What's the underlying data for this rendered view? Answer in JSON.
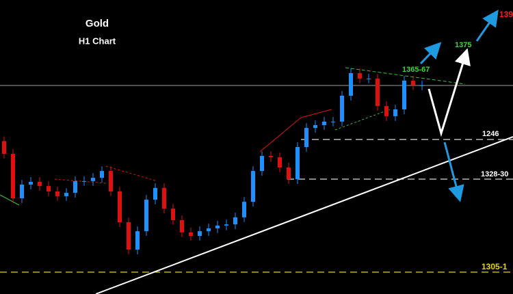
{
  "chart_data": {
    "type": "candlestick",
    "title": "Gold",
    "subtitle": "H1 Chart",
    "ylim": [
      1280,
      1405
    ],
    "up_color": "#1e90ff",
    "down_color": "#e01010",
    "open": [
      1345,
      1339.6,
      1320.7,
      1326.5,
      1327.7,
      1325.9,
      1323.6,
      1321.6,
      1323.0,
      1328.0,
      1328.0,
      1329.4,
      1332.3,
      1323.6,
      1310.5,
      1298.9,
      1306.7,
      1320.1,
      1325.1,
      1316.3,
      1311.4,
      1306.2,
      1304.7,
      1306.7,
      1307.9,
      1309.1,
      1309.6,
      1312.6,
      1319.2,
      1332.3,
      1338.7,
      1338.1,
      1333.8,
      1328.8,
      1342.5,
      1350.6,
      1351.8,
      1353.3,
      1353.3,
      1364.3,
      1373.9,
      1371.6,
      1371.6,
      1359.9,
      1355.6,
      1358.5,
      1370.7,
      1368.7
    ],
    "high": [
      1347,
      1341.6,
      1328.5,
      1329.7,
      1329.7,
      1327.9,
      1325.6,
      1325.0,
      1330.0,
      1330.0,
      1331.4,
      1334.3,
      1334.3,
      1325.6,
      1312.5,
      1308.7,
      1322.1,
      1327.1,
      1327.1,
      1318.3,
      1313.4,
      1308.2,
      1308.7,
      1309.9,
      1311.1,
      1311.6,
      1314.6,
      1321.2,
      1334.3,
      1340.7,
      1340.7,
      1340.1,
      1335.8,
      1344.5,
      1352.6,
      1353.8,
      1355.3,
      1355.3,
      1366.3,
      1375.9,
      1375.9,
      1373.6,
      1373.6,
      1361.9,
      1360.5,
      1372.7,
      1372.7,
      1370.7
    ],
    "low": [
      1337.6,
      1318.7,
      1318.7,
      1324.5,
      1323.9,
      1321.6,
      1319.6,
      1319.6,
      1321.0,
      1326.0,
      1326.0,
      1327.4,
      1321.6,
      1308.5,
      1296.9,
      1296.9,
      1304.7,
      1318.1,
      1314.3,
      1309.4,
      1304.2,
      1302.7,
      1302.7,
      1304.7,
      1305.9,
      1307.1,
      1307.6,
      1310.6,
      1317.2,
      1330.3,
      1336.1,
      1331.8,
      1326.8,
      1326.8,
      1340.5,
      1348.6,
      1349.8,
      1351.3,
      1351.3,
      1362.3,
      1369.6,
      1369.6,
      1357.9,
      1353.6,
      1353.6,
      1356.5,
      1366.7,
      1366.7
    ],
    "close": [
      1339.6,
      1320.7,
      1326.5,
      1327.7,
      1325.9,
      1323.6,
      1321.6,
      1323.0,
      1328.0,
      1328.0,
      1329.4,
      1332.3,
      1323.6,
      1310.5,
      1298.9,
      1306.7,
      1320.1,
      1325.1,
      1316.3,
      1311.4,
      1306.2,
      1304.7,
      1306.7,
      1307.9,
      1309.1,
      1309.6,
      1312.6,
      1319.2,
      1332.3,
      1338.7,
      1338.1,
      1333.8,
      1328.8,
      1342.5,
      1350.6,
      1351.8,
      1353.3,
      1353.3,
      1364.3,
      1373.9,
      1371.6,
      1371.6,
      1359.9,
      1355.6,
      1358.5,
      1370.7,
      1368.7,
      1368.7
    ],
    "annotations": {
      "target_low": "1365-67",
      "target_mid": "1375",
      "target_high": "139",
      "support": "1246",
      "support_low": "1328-30",
      "support_deep": "1305-1"
    }
  }
}
